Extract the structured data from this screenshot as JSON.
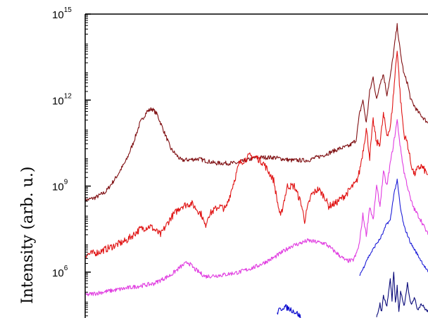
{
  "chart_data": {
    "type": "line",
    "title": "",
    "xlabel": "",
    "ylabel": "Intensity (arb. u.)",
    "yscale": "log",
    "ylim_exponents": [
      4.4,
      15
    ],
    "x_range": [
      0,
      100
    ],
    "yticks": [
      {
        "base": "10",
        "exp": "15",
        "value": 1000000000000000.0
      },
      {
        "base": "10",
        "exp": "12",
        "value": 1000000000000.0
      },
      {
        "base": "10",
        "exp": "9",
        "value": 1000000000.0
      },
      {
        "base": "10",
        "exp": "6",
        "value": 1000000.0
      }
    ],
    "grid": false,
    "legend": "none",
    "series": [
      {
        "color": "#7f0f12",
        "noise": 0.15,
        "points": [
          [
            0,
            8.5
          ],
          [
            3,
            8.6
          ],
          [
            6,
            8.8
          ],
          [
            9,
            9.3
          ],
          [
            12,
            9.9
          ],
          [
            14,
            10.5
          ],
          [
            16,
            11.2
          ],
          [
            18,
            11.6
          ],
          [
            19.5,
            11.7
          ],
          [
            21,
            11.5
          ],
          [
            23,
            10.9
          ],
          [
            25,
            10.3
          ],
          [
            28,
            9.9
          ],
          [
            33,
            9.95
          ],
          [
            38,
            9.8
          ],
          [
            44,
            9.8
          ],
          [
            50,
            10.0
          ],
          [
            55,
            10.0
          ],
          [
            60,
            9.9
          ],
          [
            65,
            9.9
          ],
          [
            70,
            10.1
          ],
          [
            74,
            10.3
          ],
          [
            77,
            10.4
          ],
          [
            79,
            10.6
          ],
          [
            80,
            11.5
          ],
          [
            81,
            12.0
          ],
          [
            82,
            11.2
          ],
          [
            83,
            12.3
          ],
          [
            84,
            12.8
          ],
          [
            85,
            12.0
          ],
          [
            86,
            12.6
          ],
          [
            87,
            12.9
          ],
          [
            88,
            12.2
          ],
          [
            89,
            12.8
          ],
          [
            90,
            13.7
          ],
          [
            91,
            14.6
          ],
          [
            92,
            13.6
          ],
          [
            93,
            12.9
          ],
          [
            94,
            12.6
          ],
          [
            95,
            12.0
          ],
          [
            97,
            11.6
          ],
          [
            100,
            11.2
          ]
        ]
      },
      {
        "color": "#e01414",
        "noise": 0.25,
        "points": [
          [
            0,
            6.6
          ],
          [
            4,
            6.7
          ],
          [
            8,
            6.9
          ],
          [
            12,
            7.1
          ],
          [
            16,
            7.5
          ],
          [
            19,
            7.6
          ],
          [
            22,
            7.3
          ],
          [
            25,
            7.9
          ],
          [
            28,
            8.3
          ],
          [
            31,
            8.4
          ],
          [
            34,
            8.0
          ],
          [
            35,
            7.6
          ],
          [
            36,
            8.0
          ],
          [
            39,
            8.3
          ],
          [
            41,
            8.2
          ],
          [
            43,
            9.0
          ],
          [
            45,
            9.8
          ],
          [
            48,
            10.05
          ],
          [
            50,
            10.0
          ],
          [
            52,
            9.8
          ],
          [
            54,
            9.4
          ],
          [
            55,
            9.2
          ],
          [
            56,
            8.5
          ],
          [
            57,
            7.9
          ],
          [
            58,
            8.5
          ],
          [
            59,
            9.0
          ],
          [
            61,
            9.0
          ],
          [
            63,
            8.4
          ],
          [
            64,
            7.8
          ],
          [
            65,
            8.3
          ],
          [
            66,
            8.7
          ],
          [
            68,
            8.9
          ],
          [
            70,
            8.6
          ],
          [
            71,
            8.3
          ],
          [
            73,
            8.4
          ],
          [
            74,
            8.5
          ],
          [
            76,
            8.7
          ],
          [
            78,
            9.0
          ],
          [
            79,
            9.1
          ],
          [
            80,
            9.5
          ],
          [
            81,
            10.2
          ],
          [
            82,
            11.0
          ],
          [
            83,
            10.0
          ],
          [
            84,
            11.3
          ],
          [
            85,
            10.5
          ],
          [
            86,
            10.5
          ],
          [
            87,
            11.5
          ],
          [
            88,
            10.8
          ],
          [
            89,
            11.0
          ],
          [
            90,
            12.3
          ],
          [
            91,
            13.8
          ],
          [
            92,
            12.0
          ],
          [
            93,
            10.8
          ],
          [
            94,
            10.5
          ],
          [
            95,
            9.8
          ],
          [
            96,
            9.4
          ],
          [
            97,
            9.6
          ],
          [
            98,
            9.7
          ],
          [
            100,
            9.4
          ]
        ]
      },
      {
        "color": "#e03ce0",
        "noise": 0.15,
        "points": [
          [
            0,
            5.2
          ],
          [
            5,
            5.3
          ],
          [
            10,
            5.4
          ],
          [
            15,
            5.5
          ],
          [
            20,
            5.6
          ],
          [
            25,
            5.9
          ],
          [
            28,
            6.2
          ],
          [
            30,
            6.35
          ],
          [
            32,
            6.1
          ],
          [
            35,
            5.85
          ],
          [
            40,
            5.9
          ],
          [
            45,
            6.0
          ],
          [
            50,
            6.2
          ],
          [
            55,
            6.5
          ],
          [
            60,
            6.9
          ],
          [
            65,
            7.1
          ],
          [
            70,
            7.0
          ],
          [
            74,
            6.6
          ],
          [
            76,
            6.4
          ],
          [
            78,
            6.4
          ],
          [
            79,
            6.6
          ],
          [
            80,
            7.0
          ],
          [
            81,
            8.0
          ],
          [
            82,
            7.3
          ],
          [
            83,
            8.3
          ],
          [
            84,
            7.8
          ],
          [
            85,
            9.0
          ],
          [
            86,
            8.3
          ],
          [
            87,
            9.5
          ],
          [
            88,
            9.0
          ],
          [
            89,
            9.8
          ],
          [
            90,
            10.5
          ],
          [
            91,
            11.3
          ],
          [
            92,
            10.3
          ],
          [
            93,
            9.5
          ],
          [
            94,
            9.0
          ],
          [
            95,
            8.5
          ],
          [
            96,
            8.2
          ],
          [
            97,
            8.0
          ],
          [
            98,
            7.8
          ],
          [
            100,
            7.3
          ]
        ]
      },
      {
        "color": "#1f1fd8",
        "noise": 0.1,
        "points": [
          [
            80,
            5.9
          ],
          [
            81,
            6.1
          ],
          [
            82,
            6.4
          ],
          [
            83,
            6.6
          ],
          [
            84,
            6.8
          ],
          [
            85,
            7.0
          ],
          [
            86,
            7.15
          ],
          [
            87,
            7.4
          ],
          [
            88,
            7.7
          ],
          [
            89,
            7.8
          ],
          [
            90,
            8.7
          ],
          [
            91,
            9.2
          ],
          [
            92,
            8.2
          ],
          [
            93,
            7.6
          ],
          [
            94,
            7.3
          ],
          [
            95,
            7.0
          ],
          [
            96,
            6.8
          ],
          [
            97,
            6.6
          ],
          [
            98,
            6.4
          ],
          [
            100,
            6.0
          ]
        ]
      },
      {
        "color": "#0a0a7a",
        "noise": 0.12,
        "points": [
          [
            85,
            4.4
          ],
          [
            86,
            4.9
          ],
          [
            86.5,
            4.6
          ],
          [
            87,
            5.2
          ],
          [
            88,
            4.8
          ],
          [
            89,
            5.8
          ],
          [
            89.5,
            5.0
          ],
          [
            90,
            6.0
          ],
          [
            90.5,
            4.9
          ],
          [
            91,
            5.5
          ],
          [
            91.5,
            4.6
          ],
          [
            92,
            5.3
          ],
          [
            93,
            4.8
          ],
          [
            94,
            5.6
          ],
          [
            95,
            4.9
          ],
          [
            96,
            5.1
          ],
          [
            97,
            4.7
          ],
          [
            98,
            4.9
          ],
          [
            100,
            4.6
          ]
        ]
      },
      {
        "color": "#0000cc",
        "noise": 0.2,
        "points": [
          [
            56,
            4.6
          ],
          [
            58,
            4.8
          ],
          [
            60,
            4.7
          ],
          [
            62,
            4.55
          ],
          [
            63,
            4.4
          ]
        ]
      }
    ]
  }
}
